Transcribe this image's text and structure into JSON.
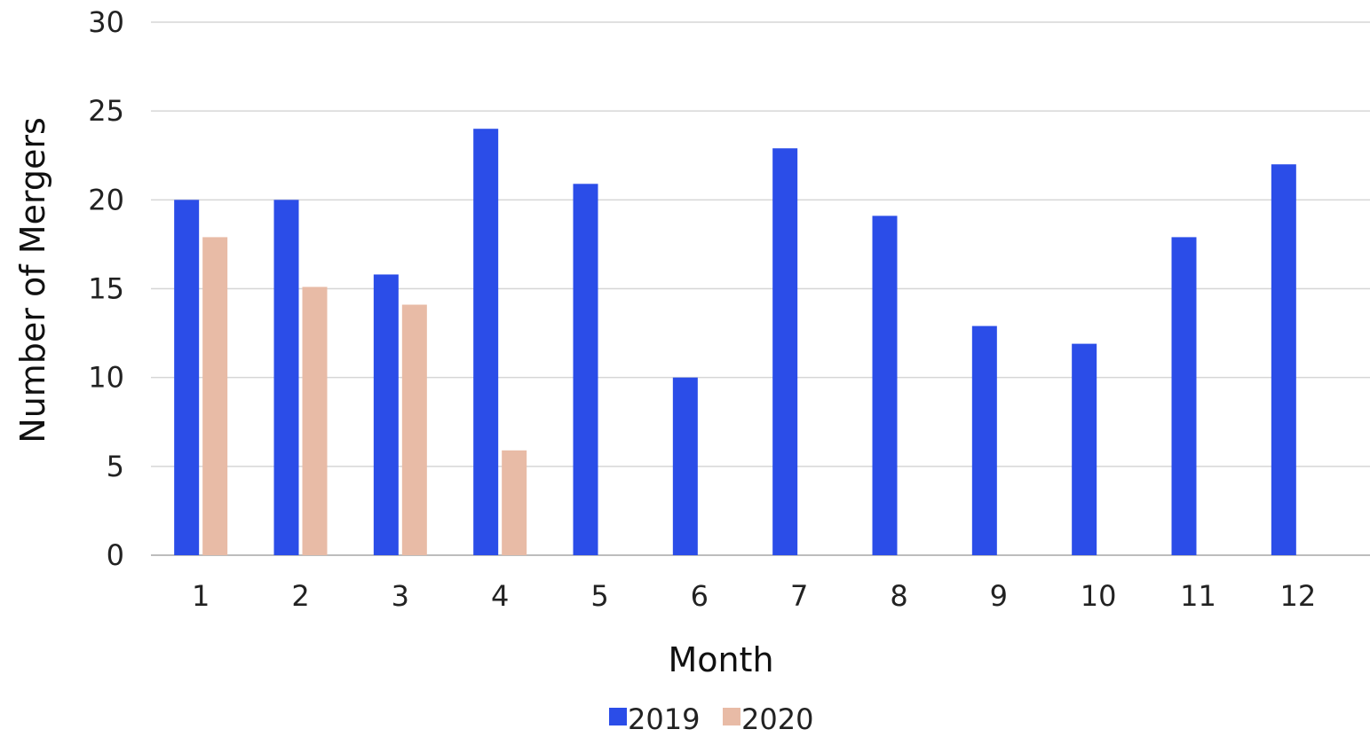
{
  "chart_data": {
    "type": "bar",
    "title": "",
    "xlabel": "Month",
    "ylabel": "Number of Mergers",
    "categories": [
      "1",
      "2",
      "3",
      "4",
      "5",
      "6",
      "7",
      "8",
      "9",
      "10",
      "11",
      "12"
    ],
    "series": [
      {
        "name": "2019",
        "color": "#2b4de8",
        "values": [
          20,
          20,
          15.8,
          24,
          20.9,
          10,
          22.9,
          19.1,
          12.9,
          11.9,
          17.9,
          22
        ]
      },
      {
        "name": "2020",
        "color": "#e8bba6",
        "values": [
          17.9,
          15.1,
          14.1,
          5.9,
          null,
          null,
          null,
          null,
          null,
          null,
          null,
          null
        ]
      }
    ],
    "ylim": [
      0,
      30
    ],
    "yticks": [
      "0",
      "5",
      "10",
      "15",
      "20",
      "25",
      "30"
    ],
    "grid": true,
    "legend_position": "bottom"
  }
}
